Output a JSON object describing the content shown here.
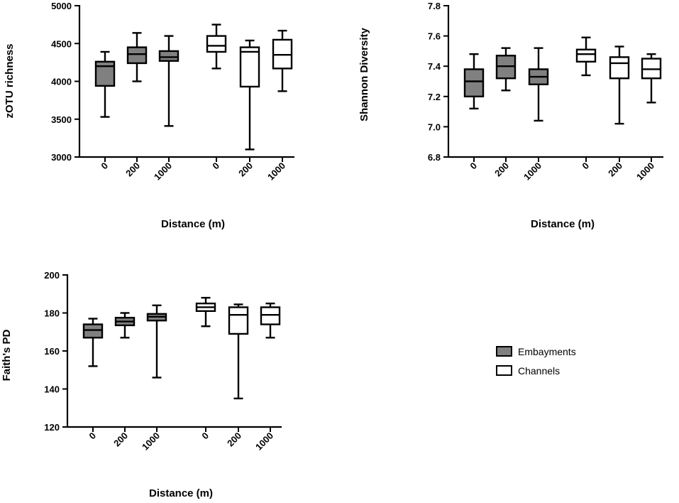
{
  "colors": {
    "embayments": "#808080",
    "channels": "#ffffff",
    "axis": "#000000"
  },
  "chart_data": [
    {
      "id": "zotu",
      "type": "box",
      "ylabel": "zOTU richness",
      "xlabel": "Distance (m)",
      "ylim": [
        3000,
        5000
      ],
      "yticks": [
        "3000",
        "3500",
        "4000",
        "4500",
        "5000"
      ],
      "categories": [
        "0",
        "200",
        "1000",
        "0",
        "200",
        "1000"
      ],
      "series": [
        {
          "name": "Embayments",
          "color": "#808080",
          "boxes": [
            {
              "min": 3530,
              "q1": 3940,
              "median": 4200,
              "q3": 4260,
              "max": 4390
            },
            {
              "min": 4000,
              "q1": 4240,
              "median": 4360,
              "q3": 4450,
              "max": 4640
            },
            {
              "min": 3410,
              "q1": 4270,
              "median": 4320,
              "q3": 4400,
              "max": 4600
            }
          ]
        },
        {
          "name": "Channels",
          "color": "#ffffff",
          "boxes": [
            {
              "min": 4170,
              "q1": 4390,
              "median": 4470,
              "q3": 4600,
              "max": 4750
            },
            {
              "min": 3100,
              "q1": 3930,
              "median": 4390,
              "q3": 4450,
              "max": 4540
            },
            {
              "min": 3870,
              "q1": 4170,
              "median": 4350,
              "q3": 4550,
              "max": 4670
            }
          ]
        }
      ]
    },
    {
      "id": "shannon",
      "type": "box",
      "ylabel": "Shannon Diversity",
      "xlabel": "Distance (m)",
      "ylim": [
        6.8,
        7.8
      ],
      "yticks": [
        "6.8",
        "7.0",
        "7.2",
        "7.4",
        "7.6",
        "7.8"
      ],
      "categories": [
        "0",
        "200",
        "1000",
        "0",
        "200",
        "1000"
      ],
      "series": [
        {
          "name": "Embayments",
          "color": "#808080",
          "boxes": [
            {
              "min": 7.12,
              "q1": 7.2,
              "median": 7.3,
              "q3": 7.38,
              "max": 7.48
            },
            {
              "min": 7.24,
              "q1": 7.32,
              "median": 7.4,
              "q3": 7.47,
              "max": 7.52
            },
            {
              "min": 7.04,
              "q1": 7.28,
              "median": 7.33,
              "q3": 7.38,
              "max": 7.52
            }
          ]
        },
        {
          "name": "Channels",
          "color": "#ffffff",
          "boxes": [
            {
              "min": 7.34,
              "q1": 7.43,
              "median": 7.48,
              "q3": 7.51,
              "max": 7.59
            },
            {
              "min": 7.02,
              "q1": 7.32,
              "median": 7.42,
              "q3": 7.46,
              "max": 7.53
            },
            {
              "min": 7.16,
              "q1": 7.32,
              "median": 7.38,
              "q3": 7.45,
              "max": 7.48
            }
          ]
        }
      ]
    },
    {
      "id": "faith",
      "type": "box",
      "ylabel": "Faith's PD",
      "xlabel": "Distance (m)",
      "ylim": [
        120,
        200
      ],
      "yticks": [
        "120",
        "140",
        "160",
        "180",
        "200"
      ],
      "categories": [
        "0",
        "200",
        "1000",
        "0",
        "200",
        "1000"
      ],
      "series": [
        {
          "name": "Embayments",
          "color": "#808080",
          "boxes": [
            {
              "min": 152,
              "q1": 167,
              "median": 171,
              "q3": 174,
              "max": 177
            },
            {
              "min": 167,
              "q1": 173.5,
              "median": 175.5,
              "q3": 177.5,
              "max": 180
            },
            {
              "min": 146,
              "q1": 176,
              "median": 178,
              "q3": 179.5,
              "max": 184
            }
          ]
        },
        {
          "name": "Channels",
          "color": "#ffffff",
          "boxes": [
            {
              "min": 173,
              "q1": 181,
              "median": 183,
              "q3": 185,
              "max": 188
            },
            {
              "min": 135,
              "q1": 169,
              "median": 179,
              "q3": 183,
              "max": 184.5
            },
            {
              "min": 167,
              "q1": 174,
              "median": 179,
              "q3": 183,
              "max": 185
            }
          ]
        }
      ]
    }
  ],
  "legend": {
    "items": [
      {
        "label": "Embayments",
        "color": "#808080"
      },
      {
        "label": "Channels",
        "color": "#ffffff"
      }
    ]
  }
}
